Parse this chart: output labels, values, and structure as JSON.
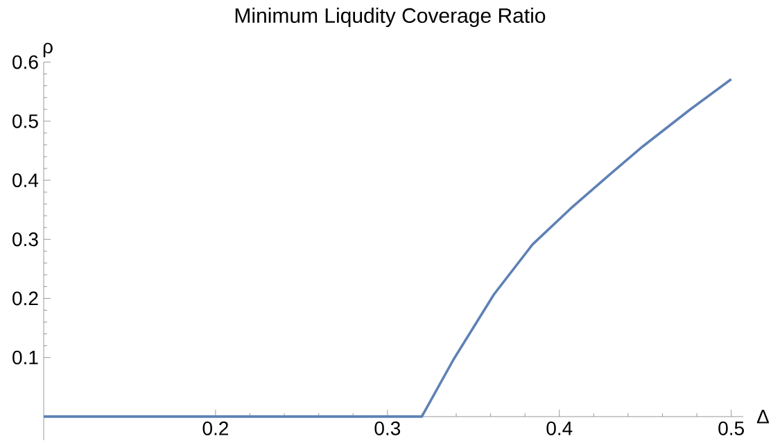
{
  "chart_data": {
    "type": "line",
    "title": "Minimum Liqudity Coverage Ratio",
    "xlabel": "Δ",
    "ylabel": "ρ",
    "x": [
      0.1,
      0.32,
      0.3385,
      0.362,
      0.3843,
      0.4065,
      0.4274,
      0.4484,
      0.4762,
      0.5
    ],
    "series": [
      {
        "color": "#5e81b5",
        "values": [
          0,
          0,
          0.097,
          0.207,
          0.291,
          0.352,
          0.405,
          0.457,
          0.52,
          0.571
        ]
      }
    ],
    "xlim": [
      0.1,
      0.507
    ],
    "ylim": [
      -0.04,
      0.6
    ],
    "xticks": [
      0.2,
      0.3,
      0.4,
      0.5
    ],
    "yticks": [
      0.1,
      0.2,
      0.3,
      0.4,
      0.5,
      0.6
    ],
    "marker": "none",
    "line_style": "solid"
  }
}
